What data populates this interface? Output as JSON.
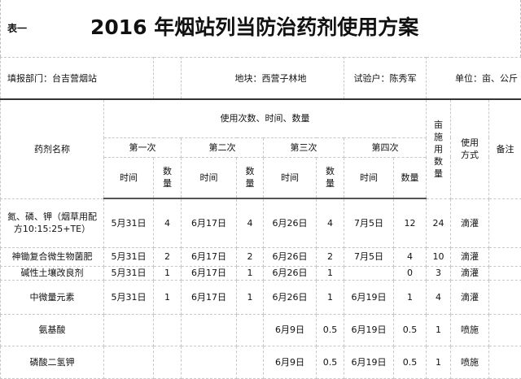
{
  "tag": "表一",
  "title": "2016 年烟站列当防治药剂使用方案",
  "info": {
    "dept": "填报部门：台吉营烟站",
    "plot": "地块：西营子林地",
    "farmer": "试验户：陈秀军",
    "unit": "单位：亩、公斤"
  },
  "header": {
    "name": "药剂名称",
    "usage": "使用次数、时间、数量",
    "rounds": [
      "第一次",
      "第二次",
      "第三次",
      "第四次"
    ],
    "time": "时间",
    "qty": "数量",
    "per_mu": "亩施用数量",
    "method": "使用方式",
    "notes": "备注"
  },
  "rows": [
    {
      "name": "氮、磷、钾（烟草用配方10:15:25+TE）",
      "t1": "5月31日",
      "q1": "4",
      "t2": "6月17日",
      "q2": "4",
      "t3": "6月26日",
      "q3": "4",
      "t4": "7月5日",
      "q4": "12",
      "mu": "24",
      "method": "滴灌",
      "note": ""
    },
    {
      "name": "神锄复合微生物菌肥",
      "t1": "5月31日",
      "q1": "2",
      "t2": "6月17日",
      "q2": "2",
      "t3": "6月26日",
      "q3": "2",
      "t4": "7月5日",
      "q4": "4",
      "mu": "10",
      "method": "滴灌",
      "note": ""
    },
    {
      "name": "碱性土壤改良剂",
      "t1": "5月31日",
      "q1": "1",
      "t2": "6月17日",
      "q2": "1",
      "t3": "6月26日",
      "q3": "1",
      "t4": "",
      "q4": "0",
      "mu": "3",
      "method": "滴灌",
      "note": ""
    },
    {
      "name": "中微量元素",
      "t1": "5月31日",
      "q1": "1",
      "t2": "6月17日",
      "q2": "1",
      "t3": "6月26日",
      "q3": "1",
      "t4": "6月19日",
      "q4": "1",
      "mu": "4",
      "method": "滴灌",
      "note": ""
    },
    {
      "name": "氨基酸",
      "t1": "",
      "q1": "",
      "t2": "",
      "q2": "",
      "t3": "6月9日",
      "q3": "0.5",
      "t4": "6月19日",
      "q4": "0.5",
      "mu": "1",
      "method": "喷施",
      "note": ""
    },
    {
      "name": "磷酸二氢钾",
      "t1": "",
      "q1": "",
      "t2": "",
      "q2": "",
      "t3": "6月9日",
      "q3": "0.5",
      "t4": "6月19日",
      "q4": "0.5",
      "mu": "1",
      "method": "喷施",
      "note": ""
    }
  ]
}
